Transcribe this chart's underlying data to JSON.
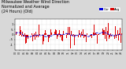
{
  "title_line1": "Milwaukee Weather Wind Direction",
  "title_line2": "Normalized and Average",
  "title_line3": "(24 Hours) (Old)",
  "title_fontsize": 3.5,
  "background_color": "#d8d8d8",
  "plot_bg_color": "#ffffff",
  "bar_color": "#dd0000",
  "avg_color": "#0000dd",
  "grid_color": "#bbbbbb",
  "ylim": [
    -1.5,
    1.5
  ],
  "ytick_values": [
    -1.0,
    -0.5,
    0.0,
    0.5,
    1.0
  ],
  "ytick_labels": [
    "-1",
    "-.5",
    "0",
    ".5",
    "1"
  ],
  "n_points": 144,
  "seed": 42,
  "legend_labels": [
    "Cur",
    "Avg"
  ],
  "legend_colors": [
    "#0000dd",
    "#dd0000"
  ],
  "n_xticks": 25
}
